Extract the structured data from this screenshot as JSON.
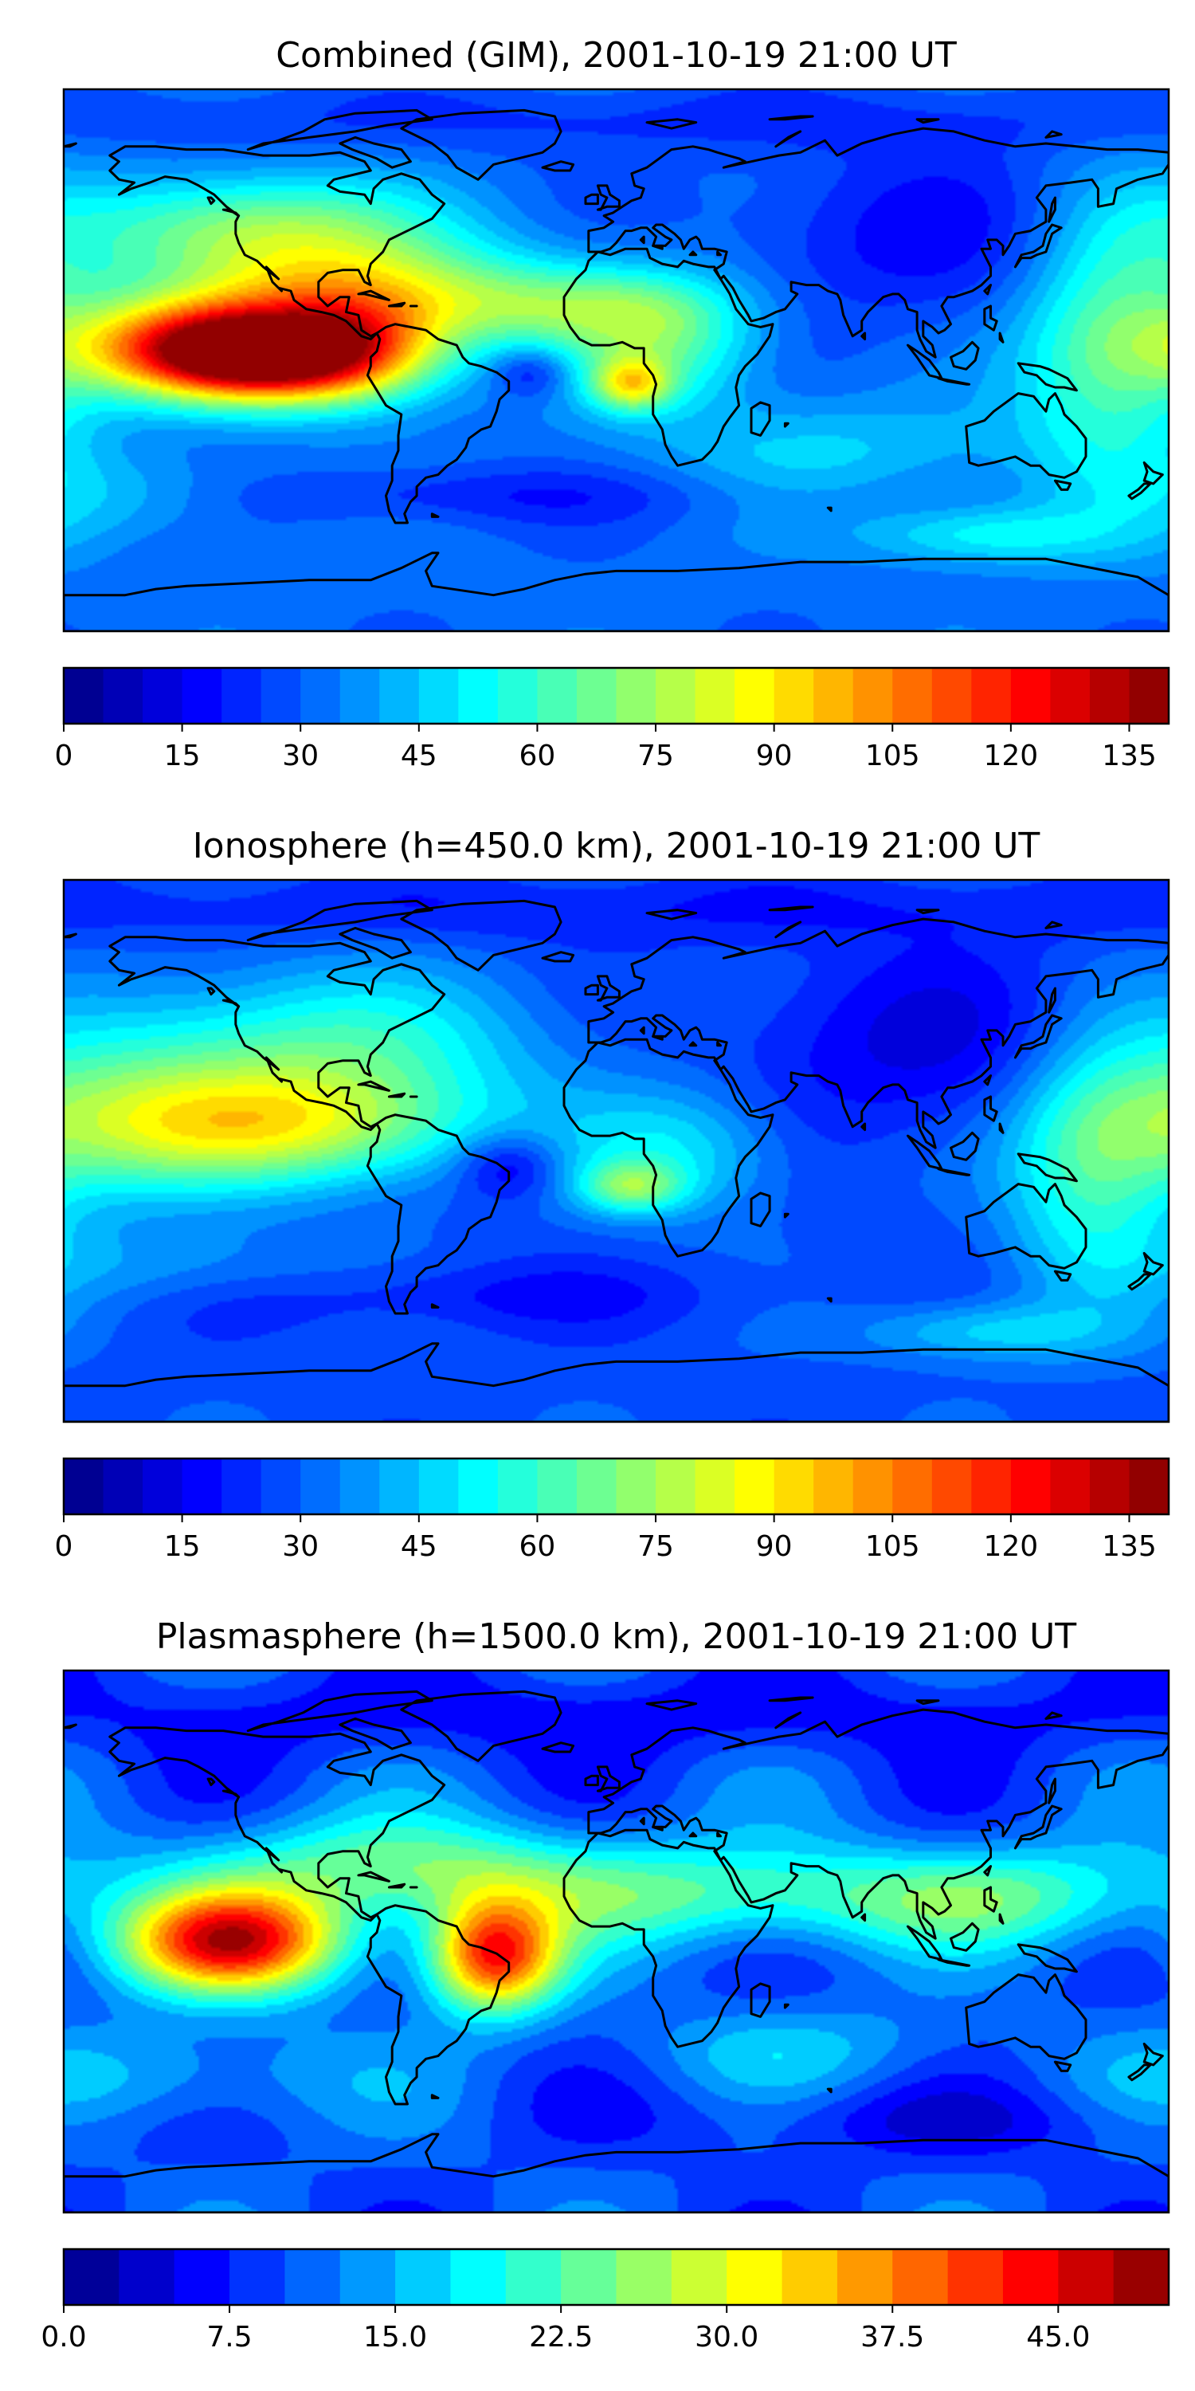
{
  "figure": {
    "panels": [
      {
        "title": "Combined (GIM), 2001-10-19 21:00 UT",
        "colorbar": {
          "vmin": 0,
          "vmax": 140,
          "levels": 28,
          "ticks": [
            0,
            15,
            30,
            45,
            60,
            75,
            90,
            105,
            120,
            135
          ],
          "tick_labels": [
            "0",
            "15",
            "30",
            "45",
            "60",
            "75",
            "90",
            "105",
            "120",
            "135"
          ]
        }
      },
      {
        "title": "Ionosphere  (h=450.0 km), 2001-10-19 21:00 UT",
        "colorbar": {
          "vmin": 0,
          "vmax": 140,
          "levels": 28,
          "ticks": [
            0,
            15,
            30,
            45,
            60,
            75,
            90,
            105,
            120,
            135
          ],
          "tick_labels": [
            "0",
            "15",
            "30",
            "45",
            "60",
            "75",
            "90",
            "105",
            "120",
            "135"
          ]
        }
      },
      {
        "title": "Plasmasphere (h=1500.0 km), 2001-10-19 21:00 UT",
        "colorbar": {
          "vmin": 0,
          "vmax": 50,
          "levels": 20,
          "ticks": [
            0,
            7.5,
            15,
            22.5,
            30,
            37.5,
            45
          ],
          "tick_labels": [
            "0.0",
            "7.5",
            "15.0",
            "22.5",
            "30.0",
            "37.5",
            "45.0"
          ]
        }
      }
    ],
    "colormap": "jet"
  },
  "chart_data": [
    {
      "type": "heatmap",
      "title": "Combined (GIM), 2001-10-19 21:00 UT",
      "projection": "equirectangular",
      "lon_range": [
        -180,
        180
      ],
      "lat_range": [
        -90,
        90
      ],
      "colormap": "jet",
      "colorbar_range": [
        0,
        140
      ],
      "colorbar_ticks": [
        0,
        15,
        30,
        45,
        60,
        75,
        90,
        105,
        120,
        135
      ],
      "coastlines": true,
      "background_value": 32,
      "features": [
        {
          "lon": -135,
          "lat": 5,
          "slon": 30,
          "slat": 11,
          "amp": 68
        },
        {
          "lon": -115,
          "lat": 0,
          "slon": 28,
          "slat": 10,
          "amp": 70
        },
        {
          "lon": -85,
          "lat": 5,
          "slon": 22,
          "slat": 13,
          "amp": 48
        },
        {
          "lon": -95,
          "lat": 25,
          "slon": 42,
          "slat": 13,
          "amp": 40
        },
        {
          "lon": -120,
          "lat": 45,
          "slon": 40,
          "slat": 12,
          "amp": 35
        },
        {
          "lon": -20,
          "lat": 18,
          "slon": 38,
          "slat": 10,
          "amp": 30
        },
        {
          "lon": 15,
          "lat": 5,
          "slon": 22,
          "slat": 15,
          "amp": 30
        },
        {
          "lon": 5,
          "lat": -8,
          "slon": 9,
          "slat": 6,
          "amp": 42
        },
        {
          "lon": -28,
          "lat": -4,
          "slon": 9,
          "slat": 6,
          "amp": -18
        },
        {
          "lon": 162,
          "lat": 5,
          "slon": 22,
          "slat": 32,
          "amp": 36
        },
        {
          "lon": 100,
          "lat": 40,
          "slon": 48,
          "slat": 22,
          "amp": -14
        },
        {
          "lon": 120,
          "lat": -58,
          "slon": 28,
          "slat": 7,
          "amp": 22
        },
        {
          "lon": -150,
          "lat": -45,
          "slon": 35,
          "slat": 9,
          "amp": 13
        },
        {
          "lon": 70,
          "lat": -30,
          "slon": 40,
          "slat": 12,
          "amp": 14
        },
        {
          "lon": -60,
          "lat": -45,
          "slon": 70,
          "slat": 7,
          "amp": -12
        },
        {
          "lon": 0,
          "lat": 80,
          "slon": 180,
          "slat": 8,
          "amp": -8
        }
      ]
    },
    {
      "type": "heatmap",
      "title": "Ionosphere  (h=450.0 km), 2001-10-19 21:00 UT",
      "projection": "equirectangular",
      "lon_range": [
        -180,
        180
      ],
      "lat_range": [
        -90,
        90
      ],
      "colormap": "jet",
      "colorbar_range": [
        0,
        140
      ],
      "colorbar_ticks": [
        0,
        15,
        30,
        45,
        60,
        75,
        90,
        105,
        120,
        135
      ],
      "coastlines": true,
      "background_value": 28,
      "features": [
        {
          "lon": -110,
          "lat": 8,
          "slon": 45,
          "slat": 14,
          "amp": 50
        },
        {
          "lon": -100,
          "lat": 35,
          "slon": 50,
          "slat": 18,
          "amp": 30
        },
        {
          "lon": -170,
          "lat": 10,
          "slon": 30,
          "slat": 20,
          "amp": 24
        },
        {
          "lon": -35,
          "lat": -5,
          "slon": 12,
          "slat": 8,
          "amp": -20
        },
        {
          "lon": 5,
          "lat": -12,
          "slon": 12,
          "slat": 6,
          "amp": 32
        },
        {
          "lon": 20,
          "lat": 0,
          "slon": 25,
          "slat": 15,
          "amp": 22
        },
        {
          "lon": 155,
          "lat": -5,
          "slon": 20,
          "slat": 30,
          "amp": 30
        },
        {
          "lon": 100,
          "lat": 35,
          "slon": 45,
          "slat": 22,
          "amp": -14
        },
        {
          "lon": -140,
          "lat": -40,
          "slon": 40,
          "slat": 10,
          "amp": 12
        },
        {
          "lon": 120,
          "lat": -60,
          "slon": 28,
          "slat": 7,
          "amp": 20
        },
        {
          "lon": -60,
          "lat": -48,
          "slon": 70,
          "slat": 8,
          "amp": -10
        },
        {
          "lon": 0,
          "lat": 80,
          "slon": 180,
          "slat": 8,
          "amp": -8
        }
      ]
    },
    {
      "type": "heatmap",
      "title": "Plasmasphere (h=1500.0 km), 2001-10-19 21:00 UT",
      "projection": "equirectangular",
      "lon_range": [
        -180,
        180
      ],
      "lat_range": [
        -90,
        90
      ],
      "colormap": "jet",
      "colorbar_range": [
        0,
        50
      ],
      "colorbar_ticks": [
        0,
        7.5,
        15,
        22.5,
        30,
        37.5,
        45
      ],
      "coastlines": true,
      "background_value": 10,
      "features": [
        {
          "lon": -125,
          "lat": 0,
          "slon": 26,
          "slat": 12,
          "amp": 34
        },
        {
          "lon": -40,
          "lat": -5,
          "slon": 15,
          "slat": 13,
          "amp": 32
        },
        {
          "lon": -75,
          "lat": 25,
          "slon": 50,
          "slat": 12,
          "amp": 12
        },
        {
          "lon": 30,
          "lat": 15,
          "slon": 60,
          "slat": 12,
          "amp": 12
        },
        {
          "lon": 130,
          "lat": 15,
          "slon": 40,
          "slat": 12,
          "amp": 10
        },
        {
          "lon": -140,
          "lat": -45,
          "slon": 40,
          "slat": 12,
          "amp": 6
        },
        {
          "lon": 60,
          "lat": -35,
          "slon": 40,
          "slat": 10,
          "amp": 5
        },
        {
          "lon": 0,
          "lat": 75,
          "slon": 180,
          "slat": 10,
          "amp": -4
        },
        {
          "lon": 100,
          "lat": -60,
          "slon": 60,
          "slat": 8,
          "amp": -4
        }
      ]
    }
  ]
}
